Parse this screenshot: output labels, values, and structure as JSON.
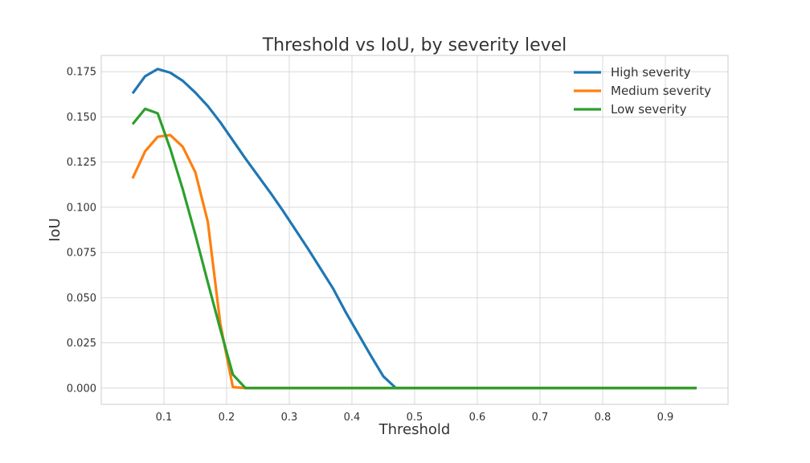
{
  "chart_data": {
    "type": "line",
    "title": "Threshold vs IoU, by severity level",
    "xlabel": "Threshold",
    "ylabel": "IoU",
    "xlim": [
      0.0,
      1.0
    ],
    "ylim": [
      -0.009,
      0.184
    ],
    "xticks": [
      0.1,
      0.2,
      0.3,
      0.4,
      0.5,
      0.6,
      0.7,
      0.8,
      0.9
    ],
    "xtick_labels": [
      "0.1",
      "0.2",
      "0.3",
      "0.4",
      "0.5",
      "0.6",
      "0.7",
      "0.8",
      "0.9"
    ],
    "yticks": [
      0.0,
      0.025,
      0.05,
      0.075,
      0.1,
      0.125,
      0.15,
      0.175
    ],
    "ytick_labels": [
      "0.000",
      "0.025",
      "0.050",
      "0.075",
      "0.100",
      "0.125",
      "0.150",
      "0.175"
    ],
    "grid": true,
    "legend_position": "top-right",
    "x": [
      0.05,
      0.07,
      0.09,
      0.11,
      0.13,
      0.15,
      0.17,
      0.19,
      0.21,
      0.23,
      0.25,
      0.27,
      0.29,
      0.31,
      0.33,
      0.35,
      0.37,
      0.39,
      0.41,
      0.43,
      0.45,
      0.47,
      0.49,
      0.51,
      0.53,
      0.55,
      0.57,
      0.59,
      0.61,
      0.63,
      0.65,
      0.67,
      0.69,
      0.71,
      0.73,
      0.75,
      0.77,
      0.79,
      0.81,
      0.83,
      0.85,
      0.87,
      0.89,
      0.91,
      0.93,
      0.95
    ],
    "series": [
      {
        "name": "High severity",
        "color": "#1f77b4",
        "values": [
          0.163,
          0.1725,
          0.1765,
          0.1745,
          0.17,
          0.1635,
          0.156,
          0.147,
          0.137,
          0.127,
          0.1175,
          0.108,
          0.098,
          0.0875,
          0.077,
          0.066,
          0.055,
          0.042,
          0.03,
          0.018,
          0.0065,
          0.0,
          0.0,
          0.0,
          0.0,
          0.0,
          0.0,
          0.0,
          0.0,
          0.0,
          0.0,
          0.0,
          0.0,
          0.0,
          0.0,
          0.0,
          0.0,
          0.0,
          0.0,
          0.0,
          0.0,
          0.0,
          0.0,
          0.0,
          0.0,
          0.0
        ]
      },
      {
        "name": "Medium severity",
        "color": "#ff7f0e",
        "values": [
          0.116,
          0.131,
          0.139,
          0.14,
          0.1335,
          0.1195,
          0.092,
          0.0355,
          0.0005,
          0.0,
          0.0,
          0.0,
          0.0,
          0.0,
          0.0,
          0.0,
          0.0,
          0.0,
          0.0,
          0.0,
          0.0,
          0.0,
          0.0,
          0.0,
          0.0,
          0.0,
          0.0,
          0.0,
          0.0,
          0.0,
          0.0,
          0.0,
          0.0,
          0.0,
          0.0,
          0.0,
          0.0,
          0.0,
          0.0,
          0.0,
          0.0,
          0.0,
          0.0,
          0.0,
          0.0,
          0.0
        ]
      },
      {
        "name": "Low severity",
        "color": "#2ca02c",
        "values": [
          0.146,
          0.1545,
          0.152,
          0.1325,
          0.11,
          0.085,
          0.0585,
          0.0325,
          0.0075,
          0.0,
          0.0,
          0.0,
          0.0,
          0.0,
          0.0,
          0.0,
          0.0,
          0.0,
          0.0,
          0.0,
          0.0,
          0.0,
          0.0,
          0.0,
          0.0,
          0.0,
          0.0,
          0.0,
          0.0,
          0.0,
          0.0,
          0.0,
          0.0,
          0.0,
          0.0,
          0.0,
          0.0,
          0.0,
          0.0,
          0.0,
          0.0,
          0.0,
          0.0,
          0.0,
          0.0,
          0.0
        ]
      }
    ]
  }
}
